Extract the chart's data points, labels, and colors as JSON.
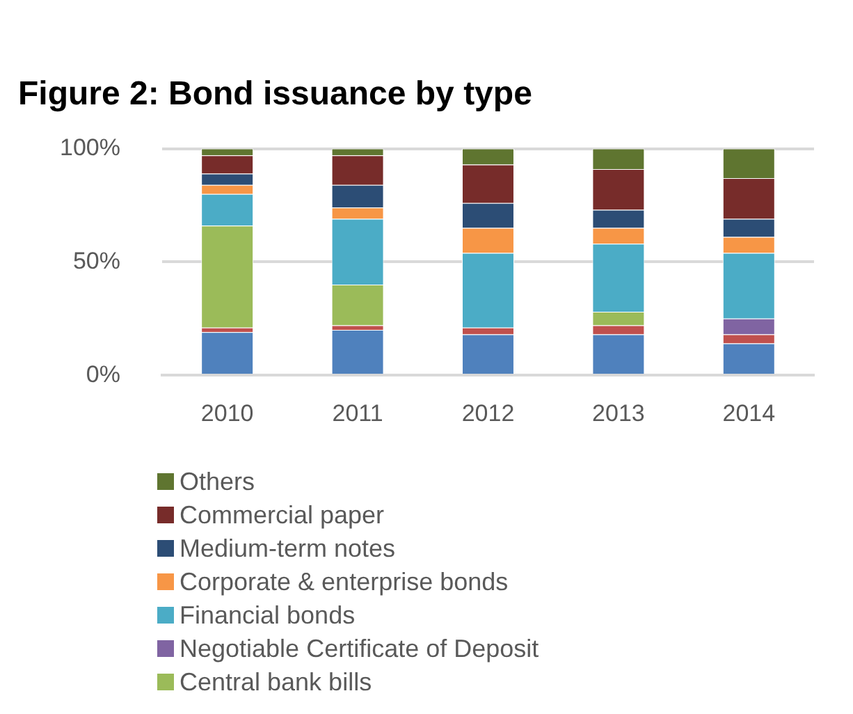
{
  "chart_data": {
    "type": "bar",
    "title": "Figure 2: Bond issuance by type",
    "categories": [
      "2010",
      "2011",
      "2012",
      "2013",
      "2014"
    ],
    "stacked": true,
    "ylim": [
      0,
      100
    ],
    "yticks": [
      {
        "value": 0,
        "label": "0%"
      },
      {
        "value": 50,
        "label": "50%"
      },
      {
        "value": 100,
        "label": "100%"
      }
    ],
    "grid": "y",
    "legend": "bottom",
    "series": [
      {
        "color": "#4f81bd",
        "values": [
          19,
          20,
          18,
          18,
          14
        ]
      },
      {
        "color": "#c0504d",
        "values": [
          2,
          2,
          3,
          4,
          4
        ]
      },
      {
        "name": "Central bank bills",
        "color": "#9bbb59",
        "values": [
          45,
          18,
          0,
          6,
          0
        ]
      },
      {
        "name": "Negotiable Certificate of Deposit",
        "color": "#8064a2",
        "values": [
          0,
          0,
          0,
          0,
          7
        ]
      },
      {
        "name": "Financial bonds",
        "color": "#4bacc6",
        "values": [
          14,
          29,
          33,
          30,
          29
        ]
      },
      {
        "name": "Corporate & enterprise bonds",
        "color": "#f79646",
        "values": [
          4,
          5,
          11,
          7,
          7
        ]
      },
      {
        "name": "Medium-term notes",
        "color": "#2c4d75",
        "values": [
          5,
          10,
          11,
          8,
          8
        ]
      },
      {
        "name": "Commercial paper",
        "color": "#772c2a",
        "values": [
          8,
          13,
          17,
          18,
          18
        ]
      },
      {
        "name": "Others",
        "color": "#5f7530",
        "values": [
          3,
          3,
          7,
          9,
          13
        ]
      }
    ]
  }
}
